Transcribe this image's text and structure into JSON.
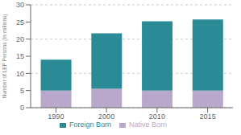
{
  "chart_data": {
    "type": "bar",
    "stacked": true,
    "categories": [
      "1990",
      "2000",
      "2010",
      "2015"
    ],
    "series": [
      {
        "name": "Native Born",
        "color": "#b9a8cc",
        "values": [
          5.0,
          5.5,
          5.0,
          5.0
        ]
      },
      {
        "name": "Foreign Born",
        "color": "#2a8a96",
        "values": [
          9.0,
          16.2,
          20.2,
          20.7
        ]
      }
    ],
    "ylabel": "Number of LEP Persons (In millions)",
    "ylim": [
      0,
      30
    ],
    "yticks": [
      0,
      5,
      10,
      15,
      20,
      25,
      30
    ],
    "grid": true,
    "legend": "bottom"
  }
}
